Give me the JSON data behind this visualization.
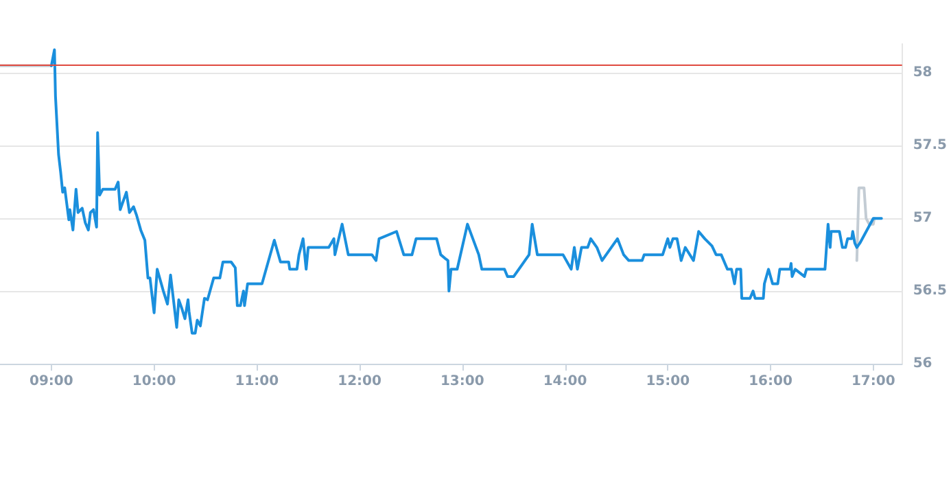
{
  "chart_data": {
    "type": "line",
    "marker": "none",
    "line_style": "solid",
    "grid": "y",
    "xlim": [
      8.5,
      17.28
    ],
    "xticks": [
      {
        "value": 9,
        "label": "09:00"
      },
      {
        "value": 10,
        "label": "10:00"
      },
      {
        "value": 11,
        "label": "11:00"
      },
      {
        "value": 12,
        "label": "12:00"
      },
      {
        "value": 13,
        "label": "13:00"
      },
      {
        "value": 14,
        "label": "14:00"
      },
      {
        "value": 15,
        "label": "15:00"
      },
      {
        "value": 16,
        "label": "16:00"
      },
      {
        "value": 17,
        "label": "17:00"
      }
    ],
    "ylim": [
      56,
      58.2
    ],
    "yticks": [
      56,
      56.5,
      57,
      57.5,
      58
    ],
    "ref_lines": [
      {
        "axis": "y",
        "value": 58.06,
        "color": "#e04a3f"
      }
    ],
    "series": [
      {
        "color": "#c3ccd4",
        "x": [
          8.5,
          9.0
        ],
        "values": [
          58.05,
          58.05
        ]
      },
      {
        "color": "#c3ccd4",
        "x": [
          16.84,
          16.86,
          16.91,
          16.93,
          16.96,
          17.0,
          17.01
        ],
        "values": [
          56.71,
          57.21,
          57.21,
          57.0,
          56.96,
          56.96,
          57.0
        ]
      },
      {
        "color": "#1a8fdd",
        "x": [
          9.0,
          9.03,
          9.04,
          9.07,
          9.09,
          9.11,
          9.13,
          9.15,
          9.17,
          9.18,
          9.21,
          9.24,
          9.26,
          9.3,
          9.33,
          9.36,
          9.38,
          9.41,
          9.44,
          9.45,
          9.47,
          9.5,
          9.62,
          9.65,
          9.67,
          9.73,
          9.76,
          9.8,
          9.83,
          9.87,
          9.91,
          9.94,
          9.96,
          10.0,
          10.03,
          10.09,
          10.13,
          10.16,
          10.22,
          10.24,
          10.27,
          10.3,
          10.33,
          10.34,
          10.37,
          10.4,
          10.42,
          10.45,
          10.49,
          10.52,
          10.58,
          10.64,
          10.67,
          10.75,
          10.79,
          10.81,
          10.84,
          10.87,
          10.88,
          10.91,
          11.05,
          11.17,
          11.23,
          11.31,
          11.32,
          11.39,
          11.41,
          11.45,
          11.48,
          11.5,
          11.68,
          11.7,
          11.75,
          11.76,
          11.83,
          11.89,
          12.12,
          12.16,
          12.19,
          12.36,
          12.43,
          12.51,
          12.55,
          12.75,
          12.79,
          12.84,
          12.86,
          12.87,
          12.89,
          12.95,
          13.05,
          13.16,
          13.19,
          13.41,
          13.44,
          13.5,
          13.65,
          13.68,
          13.73,
          13.98,
          14.06,
          14.09,
          14.12,
          14.16,
          14.22,
          14.25,
          14.31,
          14.36,
          14.51,
          14.57,
          14.62,
          14.75,
          14.77,
          14.95,
          15.0,
          15.02,
          15.05,
          15.09,
          15.13,
          15.17,
          15.25,
          15.3,
          15.36,
          15.43,
          15.47,
          15.52,
          15.58,
          15.62,
          15.65,
          15.67,
          15.71,
          15.72,
          15.8,
          15.83,
          15.85,
          15.93,
          15.94,
          15.98,
          16.02,
          16.07,
          16.09,
          16.19,
          16.2,
          16.21,
          16.24,
          16.33,
          16.35,
          16.53,
          16.56,
          16.58,
          16.59,
          16.67,
          16.7,
          16.73,
          16.75,
          16.79,
          16.8,
          16.82,
          16.84,
          16.87,
          17.0,
          17.08
        ],
        "values": [
          58.05,
          58.16,
          57.84,
          57.44,
          57.32,
          57.18,
          57.21,
          57.1,
          56.99,
          57.06,
          56.92,
          57.2,
          57.04,
          57.07,
          56.97,
          56.92,
          57.04,
          57.06,
          56.94,
          57.59,
          57.16,
          57.2,
          57.2,
          57.25,
          57.06,
          57.18,
          57.04,
          57.08,
          57.02,
          56.92,
          56.85,
          56.59,
          56.59,
          56.35,
          56.65,
          56.5,
          56.41,
          56.61,
          56.25,
          56.44,
          56.38,
          56.31,
          56.44,
          56.36,
          56.21,
          56.21,
          56.3,
          56.26,
          56.45,
          56.44,
          56.59,
          56.59,
          56.7,
          56.7,
          56.66,
          56.4,
          56.4,
          56.5,
          56.4,
          56.55,
          56.55,
          56.85,
          56.7,
          56.7,
          56.65,
          56.65,
          56.75,
          56.86,
          56.65,
          56.8,
          56.8,
          56.8,
          56.86,
          56.75,
          56.96,
          56.75,
          56.75,
          56.71,
          56.86,
          56.91,
          56.75,
          56.75,
          56.86,
          56.86,
          56.75,
          56.72,
          56.71,
          56.5,
          56.65,
          56.65,
          56.96,
          56.75,
          56.65,
          56.65,
          56.6,
          56.6,
          56.75,
          56.96,
          56.75,
          56.75,
          56.65,
          56.8,
          56.65,
          56.8,
          56.8,
          56.86,
          56.8,
          56.71,
          56.86,
          56.75,
          56.71,
          56.71,
          56.75,
          56.75,
          56.86,
          56.8,
          56.86,
          56.86,
          56.71,
          56.8,
          56.71,
          56.91,
          56.86,
          56.81,
          56.75,
          56.75,
          56.65,
          56.65,
          56.55,
          56.65,
          56.65,
          56.45,
          56.45,
          56.5,
          56.45,
          56.45,
          56.55,
          56.65,
          56.55,
          56.55,
          56.65,
          56.65,
          56.69,
          56.6,
          56.65,
          56.6,
          56.65,
          56.65,
          56.96,
          56.8,
          56.91,
          56.91,
          56.8,
          56.8,
          56.86,
          56.86,
          56.91,
          56.83,
          56.8,
          56.83,
          57.0,
          57.0
        ]
      }
    ]
  }
}
